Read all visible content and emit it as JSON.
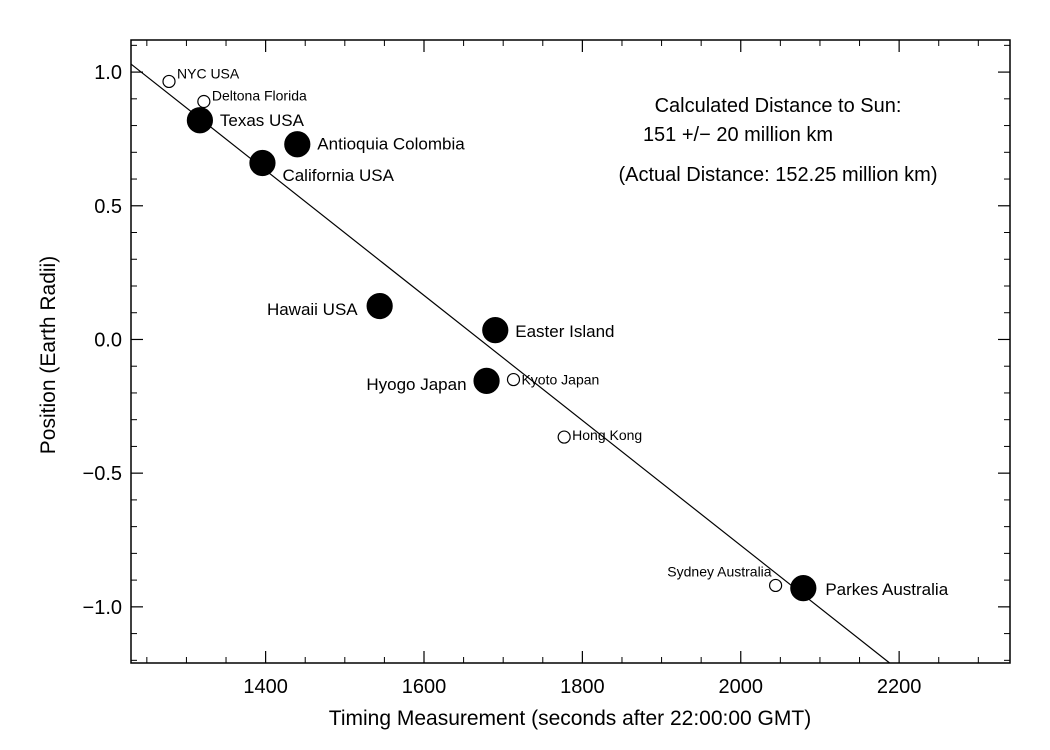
{
  "chart_data": {
    "type": "scatter",
    "xlabel": "Timing Measurement (seconds after 22:00:00 GMT)",
    "ylabel": "Position (Earth Radii)",
    "xlim": [
      1230,
      2340
    ],
    "ylim": [
      -1.21,
      1.12
    ],
    "x_ticks": [
      1400,
      1600,
      1800,
      2000,
      2200
    ],
    "x_tick_labels": [
      "1400",
      "1600",
      "1800",
      "2000",
      "2200"
    ],
    "y_ticks": [
      1.0,
      0.5,
      0.0,
      -0.5,
      -1.0
    ],
    "y_tick_labels": [
      "1.0",
      "0.5",
      "0.0",
      "−0.5",
      "−1.0"
    ],
    "grid": false,
    "fit_line": {
      "x": [
        1230,
        2188
      ],
      "y": [
        1.03,
        -1.21
      ]
    },
    "annotations": [
      "Calculated Distance to Sun:",
      "151 +/− 20 million km",
      "(Actual Distance: 152.25 million km)"
    ],
    "points": [
      {
        "label": "NYC USA",
        "x": 1278,
        "y": 0.965,
        "filled": false
      },
      {
        "label": "Deltona Florida",
        "x": 1322,
        "y": 0.89,
        "filled": false
      },
      {
        "label": "Texas USA",
        "x": 1317,
        "y": 0.82,
        "filled": true
      },
      {
        "label": "Antioquia Colombia",
        "x": 1440,
        "y": 0.73,
        "filled": true
      },
      {
        "label": "California USA",
        "x": 1396,
        "y": 0.66,
        "filled": true
      },
      {
        "label": "Hawaii USA",
        "x": 1544,
        "y": 0.125,
        "filled": true
      },
      {
        "label": "Easter Island",
        "x": 1690,
        "y": 0.035,
        "filled": true
      },
      {
        "label": "Hyogo Japan",
        "x": 1679,
        "y": -0.155,
        "filled": true
      },
      {
        "label": "Kyoto Japan",
        "x": 1713,
        "y": -0.15,
        "filled": false
      },
      {
        "label": "Hong Kong",
        "x": 1777,
        "y": -0.365,
        "filled": false
      },
      {
        "label": "Sydney Australia",
        "x": 2044,
        "y": -0.92,
        "filled": false
      },
      {
        "label": "Parkes Australia",
        "x": 2079,
        "y": -0.93,
        "filled": true
      }
    ]
  }
}
